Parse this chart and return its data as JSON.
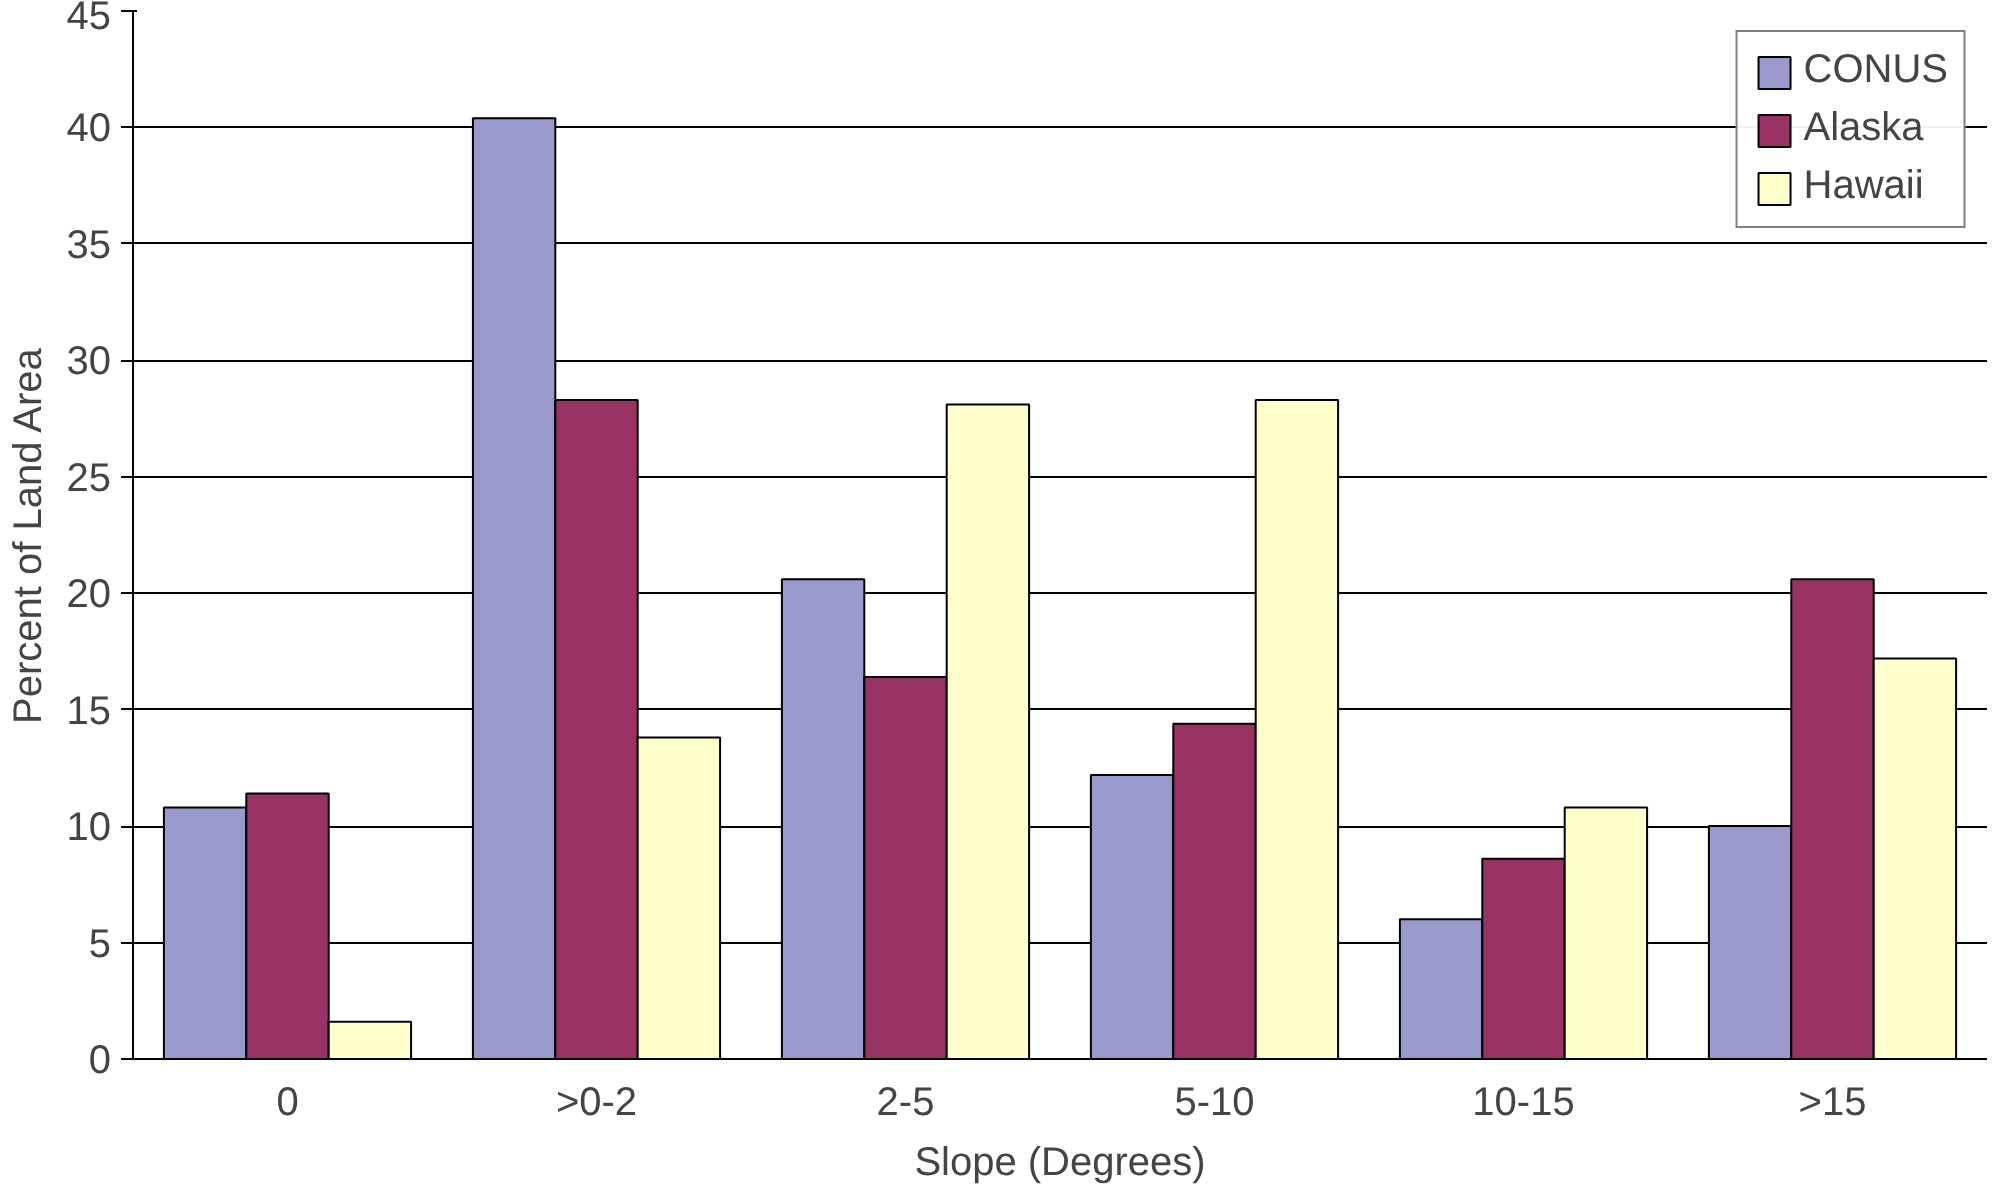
{
  "chart_data": {
    "type": "bar",
    "xlabel": "Slope (Degrees)",
    "ylabel": "Percent of Land Area",
    "categories": [
      "0",
      ">0-2",
      "2-5",
      "5-10",
      "10-15",
      ">15"
    ],
    "series": [
      {
        "name": "CONUS",
        "color": "#9999cc",
        "values": [
          10.8,
          40.4,
          20.6,
          12.2,
          6.0,
          10.0
        ]
      },
      {
        "name": "Alaska",
        "color": "#993366",
        "values": [
          11.4,
          28.3,
          16.4,
          14.4,
          8.6,
          20.6
        ]
      },
      {
        "name": "Hawaii",
        "color": "#ffffcc",
        "values": [
          1.6,
          13.8,
          28.1,
          28.3,
          10.8,
          17.2
        ]
      }
    ],
    "ylim": [
      0,
      45
    ],
    "yticks": [
      0,
      5,
      10,
      15,
      20,
      25,
      30,
      35,
      40,
      45
    ],
    "grid": "y",
    "legend": "top right"
  }
}
